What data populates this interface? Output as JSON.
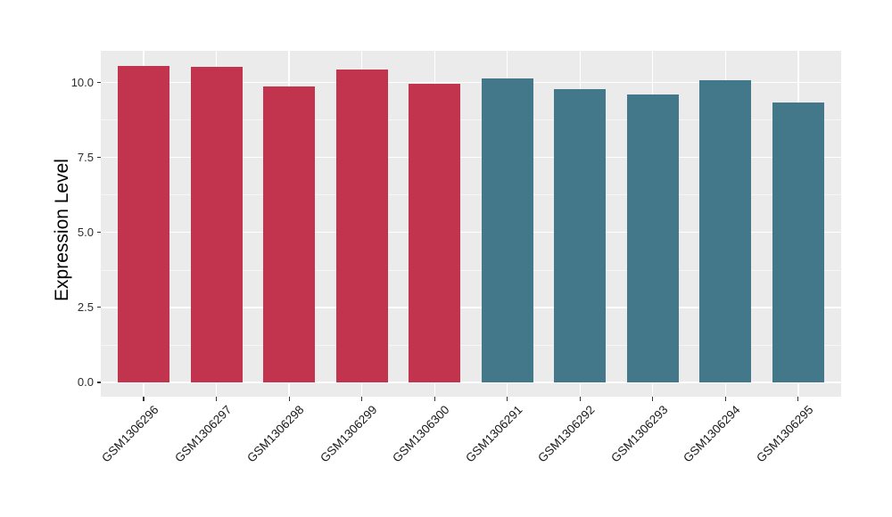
{
  "chart_data": {
    "type": "bar",
    "title": "",
    "xlabel": "",
    "ylabel": "Expression Level",
    "categories": [
      "GSM1306296",
      "GSM1306297",
      "GSM1306298",
      "GSM1306299",
      "GSM1306300",
      "GSM1306291",
      "GSM1306292",
      "GSM1306293",
      "GSM1306294",
      "GSM1306295"
    ],
    "values": [
      10.56,
      10.54,
      9.88,
      10.43,
      9.97,
      10.14,
      9.78,
      9.6,
      10.08,
      9.34
    ],
    "bar_colors": [
      "#C2334D",
      "#C2334D",
      "#C2334D",
      "#C2334D",
      "#C2334D",
      "#43788A",
      "#43788A",
      "#43788A",
      "#43788A",
      "#43788A"
    ],
    "ytick_labels": [
      "0.0",
      "2.5",
      "5.0",
      "7.5",
      "10.0"
    ],
    "yticks": [
      0,
      2.5,
      5,
      7.5,
      10
    ],
    "yticks_minor": [
      1.25,
      3.75,
      6.25,
      8.75
    ],
    "ylim": [
      0,
      11.07
    ],
    "grid": true,
    "legend": false,
    "panel_bg": "#EBEBEB",
    "grid_color": "#FFFFFF",
    "tick_color": "#333333"
  }
}
